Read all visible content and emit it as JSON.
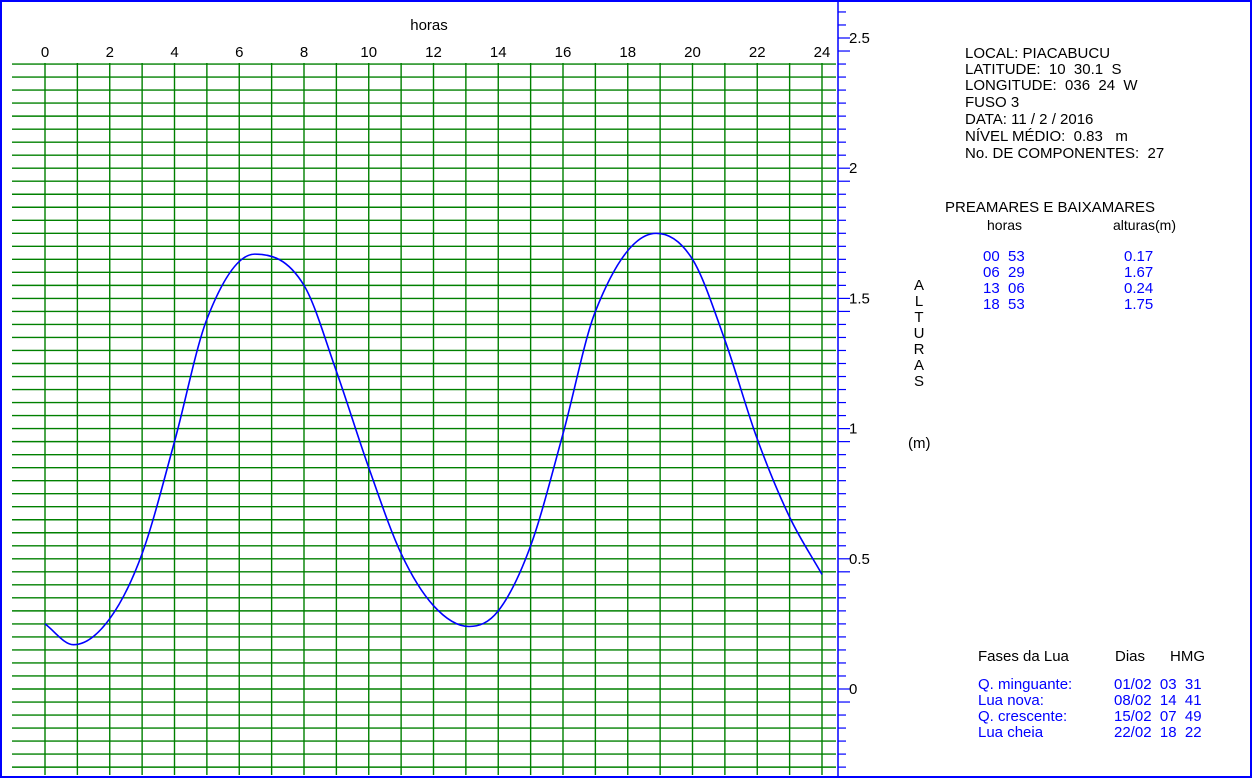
{
  "chart_data": {
    "type": "line",
    "xlabel": "horas",
    "ylabel_letters": [
      "A",
      "L",
      "T",
      "U",
      "R",
      "A",
      "S"
    ],
    "yunit": "(m)",
    "xlim": [
      0,
      24
    ],
    "ylim": [
      -0.3,
      2.6
    ],
    "x_ticks": [
      0,
      2,
      4,
      6,
      8,
      10,
      12,
      14,
      16,
      18,
      20,
      22,
      24
    ],
    "x_tick_labels": [
      "0",
      "2",
      "4",
      "6",
      "8",
      "10",
      "12",
      "14",
      "16",
      "18",
      "20",
      "22",
      "24"
    ],
    "y_ticks": [
      0,
      0.5,
      1,
      1.5,
      2,
      2.5
    ],
    "y_tick_labels": [
      "0",
      "0.5",
      "1",
      "1.5",
      "2",
      "2.5"
    ],
    "grid": true,
    "series": [
      {
        "x": [
          0,
          0.88,
          2,
          3,
          4,
          5,
          6.48,
          8,
          9,
          10,
          11,
          12,
          13.1,
          14,
          15,
          16,
          17,
          18.88,
          20,
          21,
          22,
          23,
          24
        ],
        "y": [
          0.25,
          0.17,
          0.27,
          0.52,
          0.95,
          1.42,
          1.67,
          1.55,
          1.22,
          0.85,
          0.52,
          0.32,
          0.24,
          0.3,
          0.55,
          0.98,
          1.45,
          1.75,
          1.65,
          1.34,
          0.96,
          0.66,
          0.44
        ]
      }
    ]
  },
  "info": {
    "local": "LOCAL: PIACABUCU",
    "latitude": "LATITUDE:  10  30.1  S",
    "longitude": "LONGITUDE:  036  24  W",
    "fuso": "FUSO 3",
    "data": "DATA: 11 / 2 / 2016",
    "nivel": "NÍVEL MÉDIO:  0.83   m",
    "componentes": "No. DE COMPONENTES:  27"
  },
  "tides": {
    "title": "PREAMARES E BAIXAMARES",
    "col_hours": "horas",
    "col_heights": "alturas(m)",
    "rows": [
      {
        "time": "00  53",
        "height": "0.17"
      },
      {
        "time": "06  29",
        "height": "1.67"
      },
      {
        "time": "13  06",
        "height": "0.24"
      },
      {
        "time": "18  53",
        "height": "1.75"
      }
    ]
  },
  "moon": {
    "title": "Fases da Lua",
    "col_days": "Dias",
    "col_hmg": "HMG",
    "rows": [
      {
        "phase": "Q. minguante:",
        "date": "01/02  03  31"
      },
      {
        "phase": "Lua nova:",
        "date": "08/02  14  41"
      },
      {
        "phase": "Q. crescente:",
        "date": "15/02  07  49"
      },
      {
        "phase": "Lua cheia",
        "date": "22/02  18  22"
      }
    ]
  },
  "colors": {
    "grid": "#008000",
    "curve": "#0000ff",
    "frame": "#0000ff",
    "axis": "#0000ff",
    "text": "#000000",
    "highlight_text": "#0000ff"
  }
}
